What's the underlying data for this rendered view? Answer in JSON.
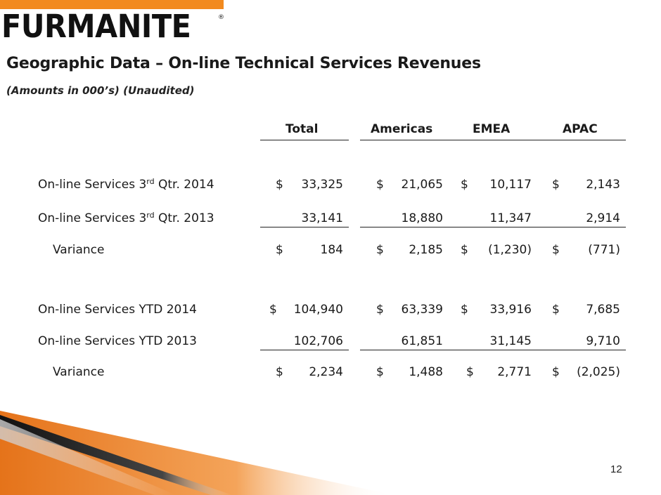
{
  "brand": {
    "name": "FURMANITE",
    "registered_mark": "®",
    "accent_color": "#f28a1e"
  },
  "slide": {
    "title": "Geographic Data – On-line Technical Services Revenues",
    "subtitle": "(Amounts in 000’s) (Unaudited)",
    "page_number": "12"
  },
  "table": {
    "headers": [
      "Total",
      "Americas",
      "EMEA",
      "APAC"
    ],
    "rows": [
      {
        "label": "On-line Services  3",
        "label_sup": "rd",
        "label_tail": " Qtr. 2014",
        "dollars": [
          "$",
          "$",
          "$",
          "$"
        ],
        "values": [
          "33,325",
          "21,065",
          "10,117",
          "2,143"
        ]
      },
      {
        "label": "On-line Services  3",
        "label_sup": "rd",
        "label_tail": " Qtr. 2013",
        "dollars": [
          "",
          "",
          "",
          ""
        ],
        "values": [
          "33,141",
          "18,880",
          "11,347",
          "2,914"
        ]
      },
      {
        "label": "Variance",
        "dollars": [
          "$",
          "$",
          "$",
          "$"
        ],
        "values": [
          "184",
          "2,185",
          "(1,230)",
          "(771)"
        ]
      },
      {
        "label": "On-line Services  YTD 2014",
        "dollars": [
          "$",
          "$",
          "$",
          "$"
        ],
        "values": [
          "104,940",
          "63,339",
          "33,916",
          "7,685"
        ]
      },
      {
        "label": "On-line Services  YTD 2013",
        "dollars": [
          "",
          "",
          "",
          ""
        ],
        "values": [
          "102,706",
          "61,851",
          "31,145",
          "9,710"
        ]
      },
      {
        "label": "Variance",
        "dollars": [
          "$",
          "$",
          "$",
          "$"
        ],
        "values": [
          "2,234",
          "1,488",
          "2,771",
          "(2,025)"
        ]
      }
    ]
  }
}
